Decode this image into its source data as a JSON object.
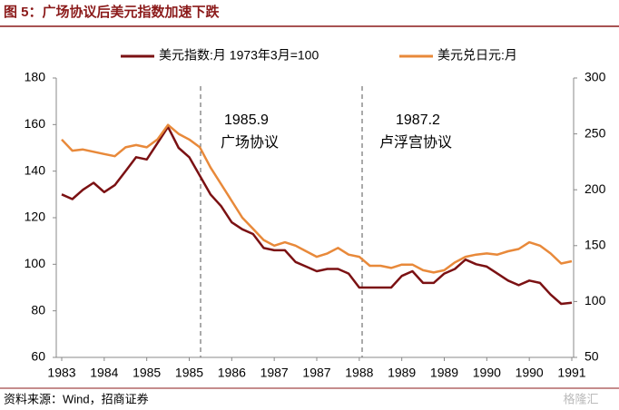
{
  "chart_data": {
    "type": "line",
    "title": "图 5：广场协议后美元指数加速下跌",
    "source": "资料来源：Wind，招商证券",
    "watermark": "格隆汇",
    "annotations": [
      "1985.9",
      "广场协议",
      "1987.2",
      "卢浮宫协议"
    ],
    "categories": [
      "1983",
      null,
      null,
      null,
      "1984",
      null,
      null,
      null,
      "1985",
      null,
      null,
      null,
      "1985",
      null,
      null,
      null,
      "1986",
      null,
      null,
      null,
      "1987",
      null,
      null,
      null,
      "1987",
      null,
      null,
      null,
      "1988",
      null,
      null,
      null,
      "1989",
      null,
      null,
      null,
      "1989",
      null,
      null,
      null,
      "1990",
      null,
      null,
      null,
      "1990",
      null,
      null,
      null,
      "1991"
    ],
    "series": [
      {
        "name": "美元指数:月 1973年3月=100",
        "color": "#7b1113",
        "axis": "y",
        "values": [
          130,
          128,
          132,
          135,
          131,
          134,
          140,
          146,
          145,
          152,
          159,
          150,
          146,
          138,
          130,
          125,
          118,
          115,
          113,
          107,
          106,
          106,
          101,
          99,
          97,
          98,
          98,
          96,
          90,
          90,
          90,
          90,
          95,
          97,
          92,
          92,
          96,
          98,
          102,
          100,
          99,
          96,
          93,
          91,
          93,
          92,
          87,
          83,
          83.5
        ]
      },
      {
        "name": "美元兑日元:月",
        "color": "#e8893a",
        "axis": "y2",
        "values": [
          245,
          235,
          236,
          234,
          232,
          230,
          238,
          240,
          238,
          245,
          258,
          250,
          245,
          238,
          220,
          205,
          190,
          175,
          165,
          155,
          150,
          153,
          150,
          145,
          140,
          143,
          148,
          142,
          140,
          132,
          132,
          130,
          133,
          133,
          128,
          126,
          128,
          135,
          140,
          142,
          143,
          142,
          145,
          147,
          153,
          150,
          143,
          134,
          136
        ]
      }
    ],
    "ylim": [
      60,
      180
    ],
    "yticks": [
      60,
      80,
      100,
      120,
      140,
      160,
      180
    ],
    "y2lim": [
      50,
      300
    ],
    "y2ticks": [
      50,
      100,
      150,
      200,
      250,
      300
    ]
  }
}
